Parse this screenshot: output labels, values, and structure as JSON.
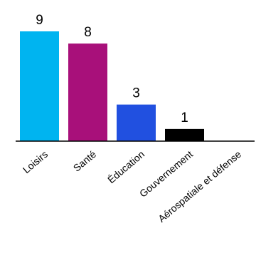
{
  "chart_data": {
    "type": "bar",
    "categories": [
      "Loisirs",
      "Santé",
      "Éducation",
      "Gouvernement",
      "Aérospatiale et défense"
    ],
    "values": [
      9,
      8,
      3,
      1,
      0
    ],
    "value_labels": [
      "9",
      "8",
      "3",
      "1",
      ""
    ],
    "colors": [
      "#00b4f0",
      "#a8107a",
      "#2150e0",
      "#000000",
      "#000000"
    ],
    "ylim": [
      0,
      9
    ],
    "grid": false,
    "legend": "none",
    "title": "",
    "xlabel": "",
    "ylabel": ""
  }
}
